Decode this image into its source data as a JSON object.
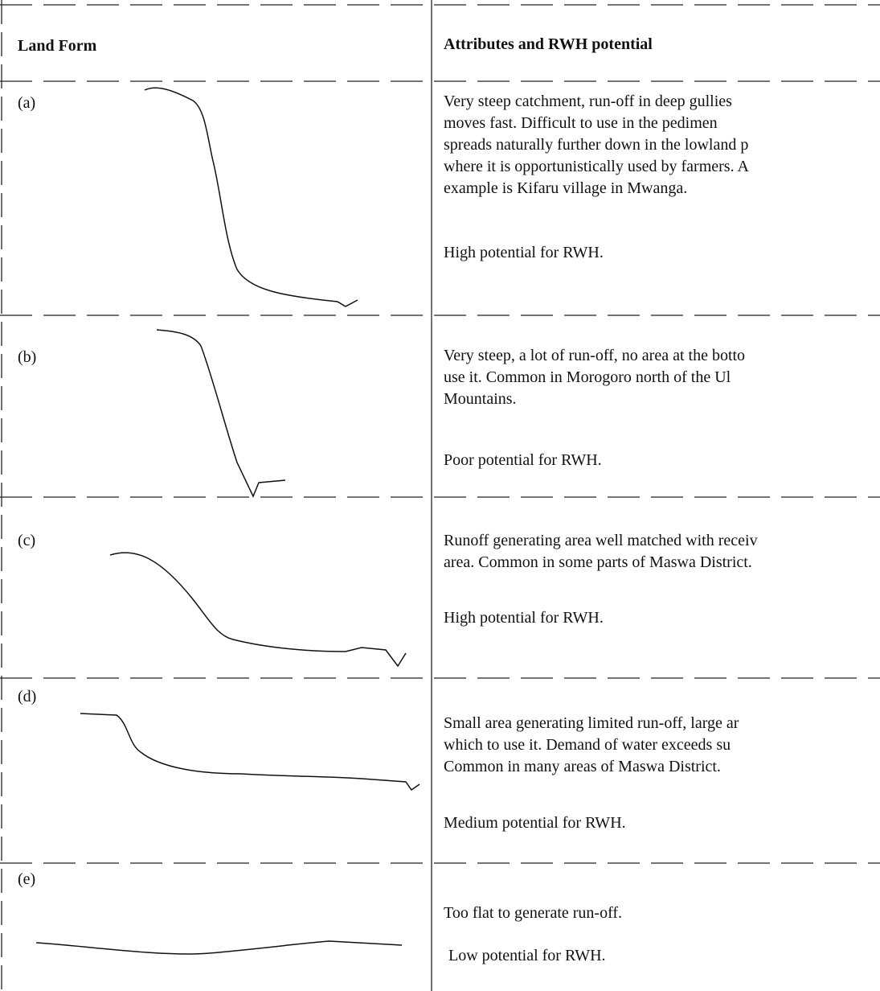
{
  "header": {
    "land_form": "Land Form",
    "attributes": "Attributes and RWH potential"
  },
  "rows": [
    {
      "label": "(a)",
      "description": [
        "Very steep catchment, run-off in deep gullies",
        "moves fast. Difficult to use in the pedimen",
        "spreads naturally further down in the lowland p",
        "where it is opportunistically used by farmers. A",
        "example is Kifaru village in Mwanga."
      ],
      "potential": "High potential for RWH."
    },
    {
      "label": "(b)",
      "description": [
        "Very steep, a lot of run-off, no area at the botto",
        "use it. Common in Morogoro north of the Ul",
        "Mountains."
      ],
      "potential": "Poor potential for RWH."
    },
    {
      "label": "(c)",
      "description": [
        "Runoff generating area well matched with receiv",
        "area. Common in some parts of Maswa District."
      ],
      "potential": "High potential for RWH."
    },
    {
      "label": "(d)",
      "description": [
        "Small area generating limited run-off, large ar",
        "which to use it. Demand of water exceeds su",
        "Common in many areas of Maswa District."
      ],
      "potential": "Medium potential for RWH."
    },
    {
      "label": "(e)",
      "description": [
        "Too flat to generate run-off."
      ],
      "potential": "Low potential for RWH."
    }
  ]
}
